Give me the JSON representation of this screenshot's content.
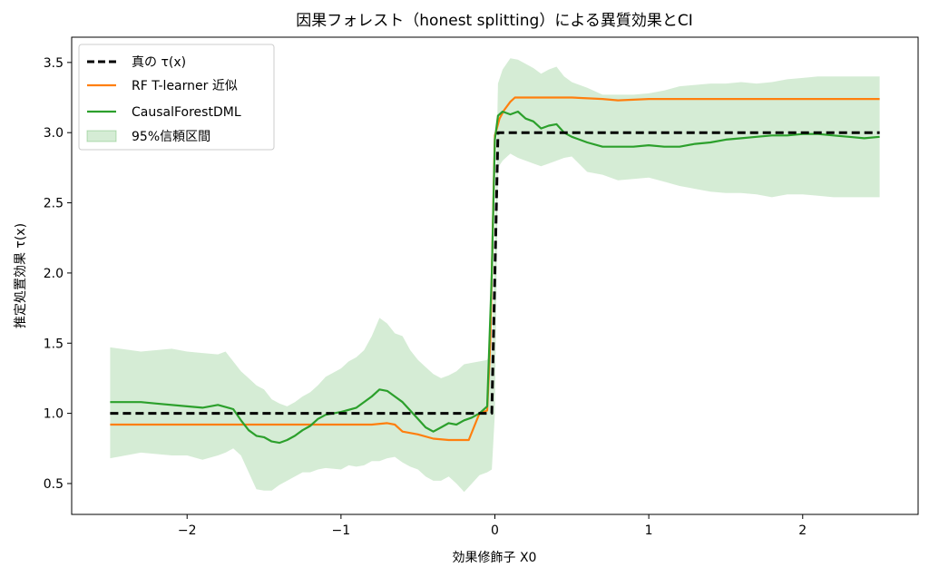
{
  "chart_data": {
    "type": "line",
    "title": "因果フォレスト（honest splitting）による異質効果とCI",
    "xlabel": "効果修飾子 X0",
    "ylabel": "推定処置効果 τ(x)",
    "xlim": [
      -2.75,
      2.75
    ],
    "ylim": [
      0.28,
      3.68
    ],
    "xticks": [
      -2,
      -1,
      0,
      1,
      2
    ],
    "xtick_labels": [
      "−2",
      "−1",
      "0",
      "1",
      "2"
    ],
    "yticks": [
      0.5,
      1.0,
      1.5,
      2.0,
      2.5,
      3.0,
      3.5
    ],
    "ytick_labels": [
      "0.5",
      "1.0",
      "1.5",
      "2.0",
      "2.5",
      "3.0",
      "3.5"
    ],
    "grid": false,
    "legend_position": "top-left",
    "series": [
      {
        "name": "真の τ(x)",
        "style": "dashed",
        "color": "#000000",
        "x": [
          -2.5,
          -0.02,
          0.02,
          2.5
        ],
        "y": [
          1.0,
          1.0,
          3.0,
          3.0
        ]
      },
      {
        "name": "RF T-learner 近似",
        "style": "solid",
        "color": "#ff7f0e",
        "x": [
          -2.5,
          -0.8,
          -0.7,
          -0.65,
          -0.6,
          -0.5,
          -0.4,
          -0.3,
          -0.25,
          -0.17,
          -0.1,
          -0.05,
          -0.03,
          -0.01,
          0.0,
          0.03,
          0.06,
          0.1,
          0.13,
          0.2,
          0.5,
          0.7,
          0.8,
          1.0,
          1.5,
          2.0,
          2.5
        ],
        "y": [
          0.92,
          0.92,
          0.93,
          0.92,
          0.87,
          0.85,
          0.82,
          0.81,
          0.81,
          0.81,
          1.0,
          1.02,
          1.5,
          2.5,
          2.98,
          3.1,
          3.16,
          3.22,
          3.25,
          3.25,
          3.25,
          3.24,
          3.23,
          3.24,
          3.24,
          3.24,
          3.24
        ]
      },
      {
        "name": "CausalForestDML",
        "style": "solid",
        "color": "#2ca02c",
        "x": [
          -2.5,
          -2.3,
          -2.2,
          -2.0,
          -1.9,
          -1.8,
          -1.7,
          -1.65,
          -1.6,
          -1.55,
          -1.5,
          -1.45,
          -1.4,
          -1.35,
          -1.3,
          -1.25,
          -1.2,
          -1.15,
          -1.1,
          -1.0,
          -0.9,
          -0.8,
          -0.75,
          -0.7,
          -0.65,
          -0.6,
          -0.55,
          -0.5,
          -0.45,
          -0.4,
          -0.35,
          -0.3,
          -0.25,
          -0.2,
          -0.15,
          -0.1,
          -0.05,
          -0.02,
          0.0,
          0.02,
          0.05,
          0.1,
          0.15,
          0.2,
          0.25,
          0.3,
          0.35,
          0.4,
          0.45,
          0.5,
          0.6,
          0.7,
          0.8,
          0.9,
          1.0,
          1.1,
          1.2,
          1.3,
          1.4,
          1.5,
          1.6,
          1.7,
          1.8,
          1.9,
          2.0,
          2.1,
          2.2,
          2.3,
          2.4,
          2.5
        ],
        "y": [
          1.08,
          1.08,
          1.07,
          1.05,
          1.04,
          1.06,
          1.03,
          0.95,
          0.88,
          0.84,
          0.83,
          0.8,
          0.79,
          0.81,
          0.84,
          0.88,
          0.91,
          0.96,
          0.99,
          1.01,
          1.04,
          1.12,
          1.17,
          1.16,
          1.12,
          1.08,
          1.02,
          0.96,
          0.9,
          0.87,
          0.9,
          0.93,
          0.92,
          0.95,
          0.97,
          1.0,
          1.05,
          2.0,
          2.95,
          3.12,
          3.15,
          3.13,
          3.15,
          3.1,
          3.08,
          3.03,
          3.05,
          3.06,
          3.0,
          2.97,
          2.93,
          2.9,
          2.9,
          2.9,
          2.91,
          2.9,
          2.9,
          2.92,
          2.93,
          2.95,
          2.96,
          2.97,
          2.98,
          2.98,
          2.99,
          2.99,
          2.98,
          2.97,
          2.96,
          2.97
        ]
      }
    ],
    "ci_band": {
      "name": "95%信頼区間",
      "color": "#2ca02c",
      "alpha": 0.2,
      "x": [
        -2.5,
        -2.3,
        -2.1,
        -2.0,
        -1.9,
        -1.8,
        -1.75,
        -1.7,
        -1.65,
        -1.6,
        -1.55,
        -1.5,
        -1.45,
        -1.4,
        -1.35,
        -1.3,
        -1.25,
        -1.2,
        -1.15,
        -1.1,
        -1.0,
        -0.95,
        -0.9,
        -0.85,
        -0.8,
        -0.75,
        -0.7,
        -0.65,
        -0.6,
        -0.55,
        -0.5,
        -0.45,
        -0.4,
        -0.35,
        -0.3,
        -0.25,
        -0.2,
        -0.15,
        -0.1,
        -0.05,
        -0.02,
        0.0,
        0.02,
        0.05,
        0.1,
        0.15,
        0.2,
        0.25,
        0.3,
        0.35,
        0.4,
        0.45,
        0.5,
        0.6,
        0.7,
        0.8,
        0.9,
        1.0,
        1.1,
        1.2,
        1.3,
        1.4,
        1.5,
        1.6,
        1.7,
        1.8,
        1.9,
        2.0,
        2.1,
        2.2,
        2.3,
        2.4,
        2.5
      ],
      "upper": [
        1.47,
        1.44,
        1.46,
        1.44,
        1.43,
        1.42,
        1.44,
        1.37,
        1.3,
        1.25,
        1.2,
        1.17,
        1.1,
        1.07,
        1.05,
        1.08,
        1.12,
        1.15,
        1.2,
        1.26,
        1.32,
        1.37,
        1.4,
        1.45,
        1.55,
        1.68,
        1.64,
        1.57,
        1.55,
        1.45,
        1.38,
        1.33,
        1.28,
        1.25,
        1.27,
        1.3,
        1.35,
        1.36,
        1.37,
        1.38,
        1.45,
        2.2,
        3.35,
        3.45,
        3.53,
        3.52,
        3.49,
        3.46,
        3.42,
        3.45,
        3.47,
        3.4,
        3.36,
        3.32,
        3.27,
        3.27,
        3.27,
        3.28,
        3.3,
        3.33,
        3.34,
        3.35,
        3.35,
        3.36,
        3.35,
        3.36,
        3.38,
        3.39,
        3.4,
        3.4,
        3.4,
        3.4,
        3.4
      ],
      "lower": [
        0.68,
        0.72,
        0.7,
        0.7,
        0.67,
        0.7,
        0.72,
        0.75,
        0.7,
        0.58,
        0.46,
        0.45,
        0.45,
        0.49,
        0.52,
        0.55,
        0.58,
        0.58,
        0.6,
        0.61,
        0.6,
        0.63,
        0.62,
        0.63,
        0.66,
        0.66,
        0.68,
        0.69,
        0.65,
        0.62,
        0.6,
        0.55,
        0.52,
        0.52,
        0.55,
        0.5,
        0.44,
        0.5,
        0.56,
        0.58,
        0.6,
        1.0,
        2.75,
        2.8,
        2.85,
        2.82,
        2.8,
        2.78,
        2.76,
        2.78,
        2.8,
        2.82,
        2.83,
        2.72,
        2.7,
        2.66,
        2.67,
        2.68,
        2.65,
        2.62,
        2.6,
        2.58,
        2.57,
        2.57,
        2.56,
        2.54,
        2.56,
        2.56,
        2.55,
        2.54,
        2.54,
        2.54,
        2.54
      ]
    }
  }
}
